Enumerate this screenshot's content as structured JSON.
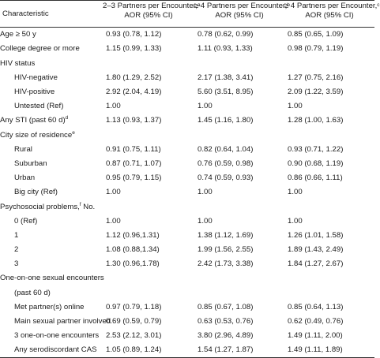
{
  "header": {
    "characteristic": "Characteristic",
    "cols": [
      {
        "title": "2–3 Partners per Encounter,",
        "sup": "a",
        "sub": "AOR (95% CI)"
      },
      {
        "title": "≥ 4 Partners per Encounter,",
        "sup": "b",
        "sub": "AOR (95% CI)"
      },
      {
        "title": "≥ 4 Partners per Encounter,",
        "sup": "c",
        "sub": "AOR (95% CI)"
      }
    ]
  },
  "rows": [
    {
      "label": "Age ≥ 50 y",
      "sup": "",
      "indent": false,
      "v": [
        "0.93 (0.78, 1.12)",
        "0.78 (0.62, 0.99)",
        "0.85 (0.65, 1.09)"
      ]
    },
    {
      "label": "College degree or more",
      "sup": "",
      "indent": false,
      "v": [
        "1.15 (0.99, 1.33)",
        "1.11 (0.93, 1.33)",
        "0.98 (0.79, 1.19)"
      ]
    },
    {
      "label": "HIV status",
      "sup": "",
      "indent": false,
      "v": [
        "",
        "",
        ""
      ]
    },
    {
      "label": "HIV-negative",
      "sup": "",
      "indent": true,
      "v": [
        "1.80 (1.29, 2.52)",
        "2.17 (1.38, 3.41)",
        "1.27 (0.75, 2.16)"
      ]
    },
    {
      "label": "HIV-positive",
      "sup": "",
      "indent": true,
      "v": [
        "2.92 (2.04, 4.19)",
        "5.60 (3.51, 8.95)",
        "2.09 (1.22, 3.59)"
      ]
    },
    {
      "label": "Untested (Ref)",
      "sup": "",
      "indent": true,
      "v": [
        "1.00",
        "1.00",
        "1.00"
      ]
    },
    {
      "label": "Any STI (past 60 d)",
      "sup": "d",
      "indent": false,
      "v": [
        "1.13 (0.93, 1.37)",
        "1.45 (1.16, 1.80)",
        "1.28 (1.00, 1.63)"
      ]
    },
    {
      "label": "City size of residence",
      "sup": "e",
      "indent": false,
      "v": [
        "",
        "",
        ""
      ]
    },
    {
      "label": "Rural",
      "sup": "",
      "indent": true,
      "v": [
        "0.91 (0.75, 1.11)",
        "0.82 (0.64, 1.04)",
        "0.93 (0.71, 1.22)"
      ]
    },
    {
      "label": "Suburban",
      "sup": "",
      "indent": true,
      "v": [
        "0.87 (0.71, 1.07)",
        "0.76 (0.59, 0.98)",
        "0.90 (0.68, 1.19)"
      ]
    },
    {
      "label": "Urban",
      "sup": "",
      "indent": true,
      "v": [
        "0.95 (0.79, 1.15)",
        "0.74 (0.59, 0.93)",
        "0.86 (0.66, 1.11)"
      ]
    },
    {
      "label": "Big city (Ref)",
      "sup": "",
      "indent": true,
      "v": [
        "1.00",
        "1.00",
        "1.00"
      ]
    },
    {
      "label": "Psychosocial problems,",
      "sup": "f",
      "suffix": " No.",
      "indent": false,
      "v": [
        "",
        "",
        ""
      ]
    },
    {
      "label": "0 (Ref)",
      "sup": "",
      "indent": true,
      "v": [
        "1.00",
        "1.00",
        "1.00"
      ]
    },
    {
      "label": "1",
      "sup": "",
      "indent": true,
      "v": [
        "1.12 (0.96,1.31)",
        "1.38 (1.12, 1.69)",
        "1.26 (1.01, 1.58)"
      ]
    },
    {
      "label": "2",
      "sup": "",
      "indent": true,
      "v": [
        "1.08 (0.88,1.34)",
        "1.99 (1.56, 2.55)",
        "1.89 (1.43, 2.49)"
      ]
    },
    {
      "label": "3",
      "sup": "",
      "indent": true,
      "v": [
        "1.30 (0.96,1.78)",
        "2.42 (1.73, 3.38)",
        "1.84 (1.27, 2.67)"
      ]
    },
    {
      "label": "One-on-one sexual encounters",
      "sup": "",
      "indent": false,
      "v": [
        "",
        "",
        ""
      ]
    },
    {
      "label": "(past 60 d)",
      "sup": "",
      "indent": true,
      "v": [
        "",
        "",
        ""
      ]
    },
    {
      "label": "Met partner(s) online",
      "sup": "",
      "indent": true,
      "v": [
        "0.97 (0.79, 1.18)",
        "0.85 (0.67, 1.08)",
        "0.85 (0.64, 1.13)"
      ]
    },
    {
      "label": "Main sexual partner involved",
      "sup": "",
      "indent": true,
      "v": [
        "0.69 (0.59, 0.79)",
        "0.63 (0.53, 0.76)",
        "0.62 (0.49, 0.76)"
      ]
    },
    {
      "label": "3 one-on-one encounters",
      "sup": "",
      "indent": true,
      "v": [
        "2.53 (2.12, 3.01)",
        "3.80 (2.96, 4.89)",
        "1.49 (1.11, 2.00)"
      ]
    },
    {
      "label": "Any serodiscordant CAS",
      "sup": "",
      "indent": true,
      "v": [
        "1.05 (0.89, 1.24)",
        "1.54 (1.27, 1.87)",
        "1.49 (1.11, 1.89)"
      ]
    }
  ]
}
